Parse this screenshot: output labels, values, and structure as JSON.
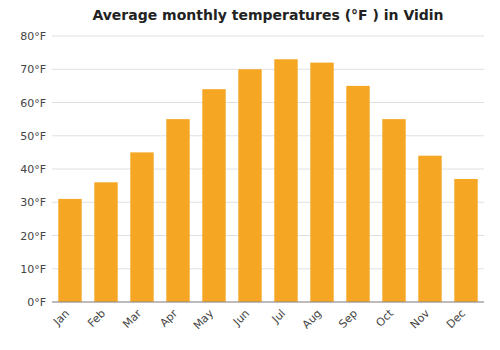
{
  "chart_data": {
    "type": "bar",
    "title": "Average monthly temperatures (°F ) in Vidin",
    "categories": [
      "Jan",
      "Feb",
      "Mar",
      "Apr",
      "May",
      "Jun",
      "Jul",
      "Aug",
      "Sep",
      "Oct",
      "Nov",
      "Dec"
    ],
    "values": [
      31,
      36,
      45,
      55,
      64,
      70,
      73,
      72,
      65,
      55,
      44,
      37
    ],
    "color": "#F5A623",
    "ylim": [
      0,
      80
    ],
    "yticks": [
      {
        "value": 0,
        "label": "0°F"
      },
      {
        "value": 10,
        "label": "10°F"
      },
      {
        "value": 20,
        "label": "20°F"
      },
      {
        "value": 30,
        "label": "30°F"
      },
      {
        "value": 40,
        "label": "40°F"
      },
      {
        "value": 50,
        "label": "50°F"
      },
      {
        "value": 60,
        "label": "60°F"
      },
      {
        "value": 70,
        "label": "70°F"
      },
      {
        "value": 80,
        "label": "80°F"
      }
    ],
    "grid": true
  }
}
